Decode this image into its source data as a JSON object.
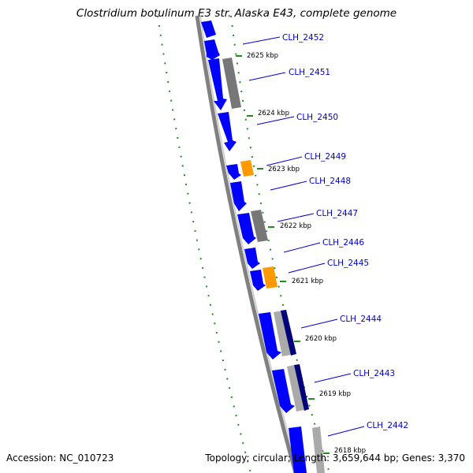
{
  "map": {
    "title": "Clostridium botulinum E3 str. Alaska E43, complete genome",
    "accession": "Accession: NC_010723",
    "summary": "Topology: circular; Length: 3,659,644 bp; Genes: 3,370"
  },
  "ticks": [
    "2625 kbp",
    "2624 kbp",
    "2623 kbp",
    "2622 kbp",
    "2621 kbp",
    "2620 kbp",
    "2619 kbp",
    "2618 kbp"
  ],
  "genes": [
    "CLH_2452",
    "CLH_2451",
    "CLH_2450",
    "CLH_2449",
    "CLH_2448",
    "CLH_2447",
    "CLH_2446",
    "CLH_2445",
    "CLH_2444",
    "CLH_2443",
    "CLH_2442"
  ],
  "colors": {
    "cds": "#0000ff",
    "gray_feature": "#777777",
    "orange_feature": "#ff9900",
    "label": "#0000cc",
    "tick": "#228b22",
    "backbone": "#808080"
  }
}
